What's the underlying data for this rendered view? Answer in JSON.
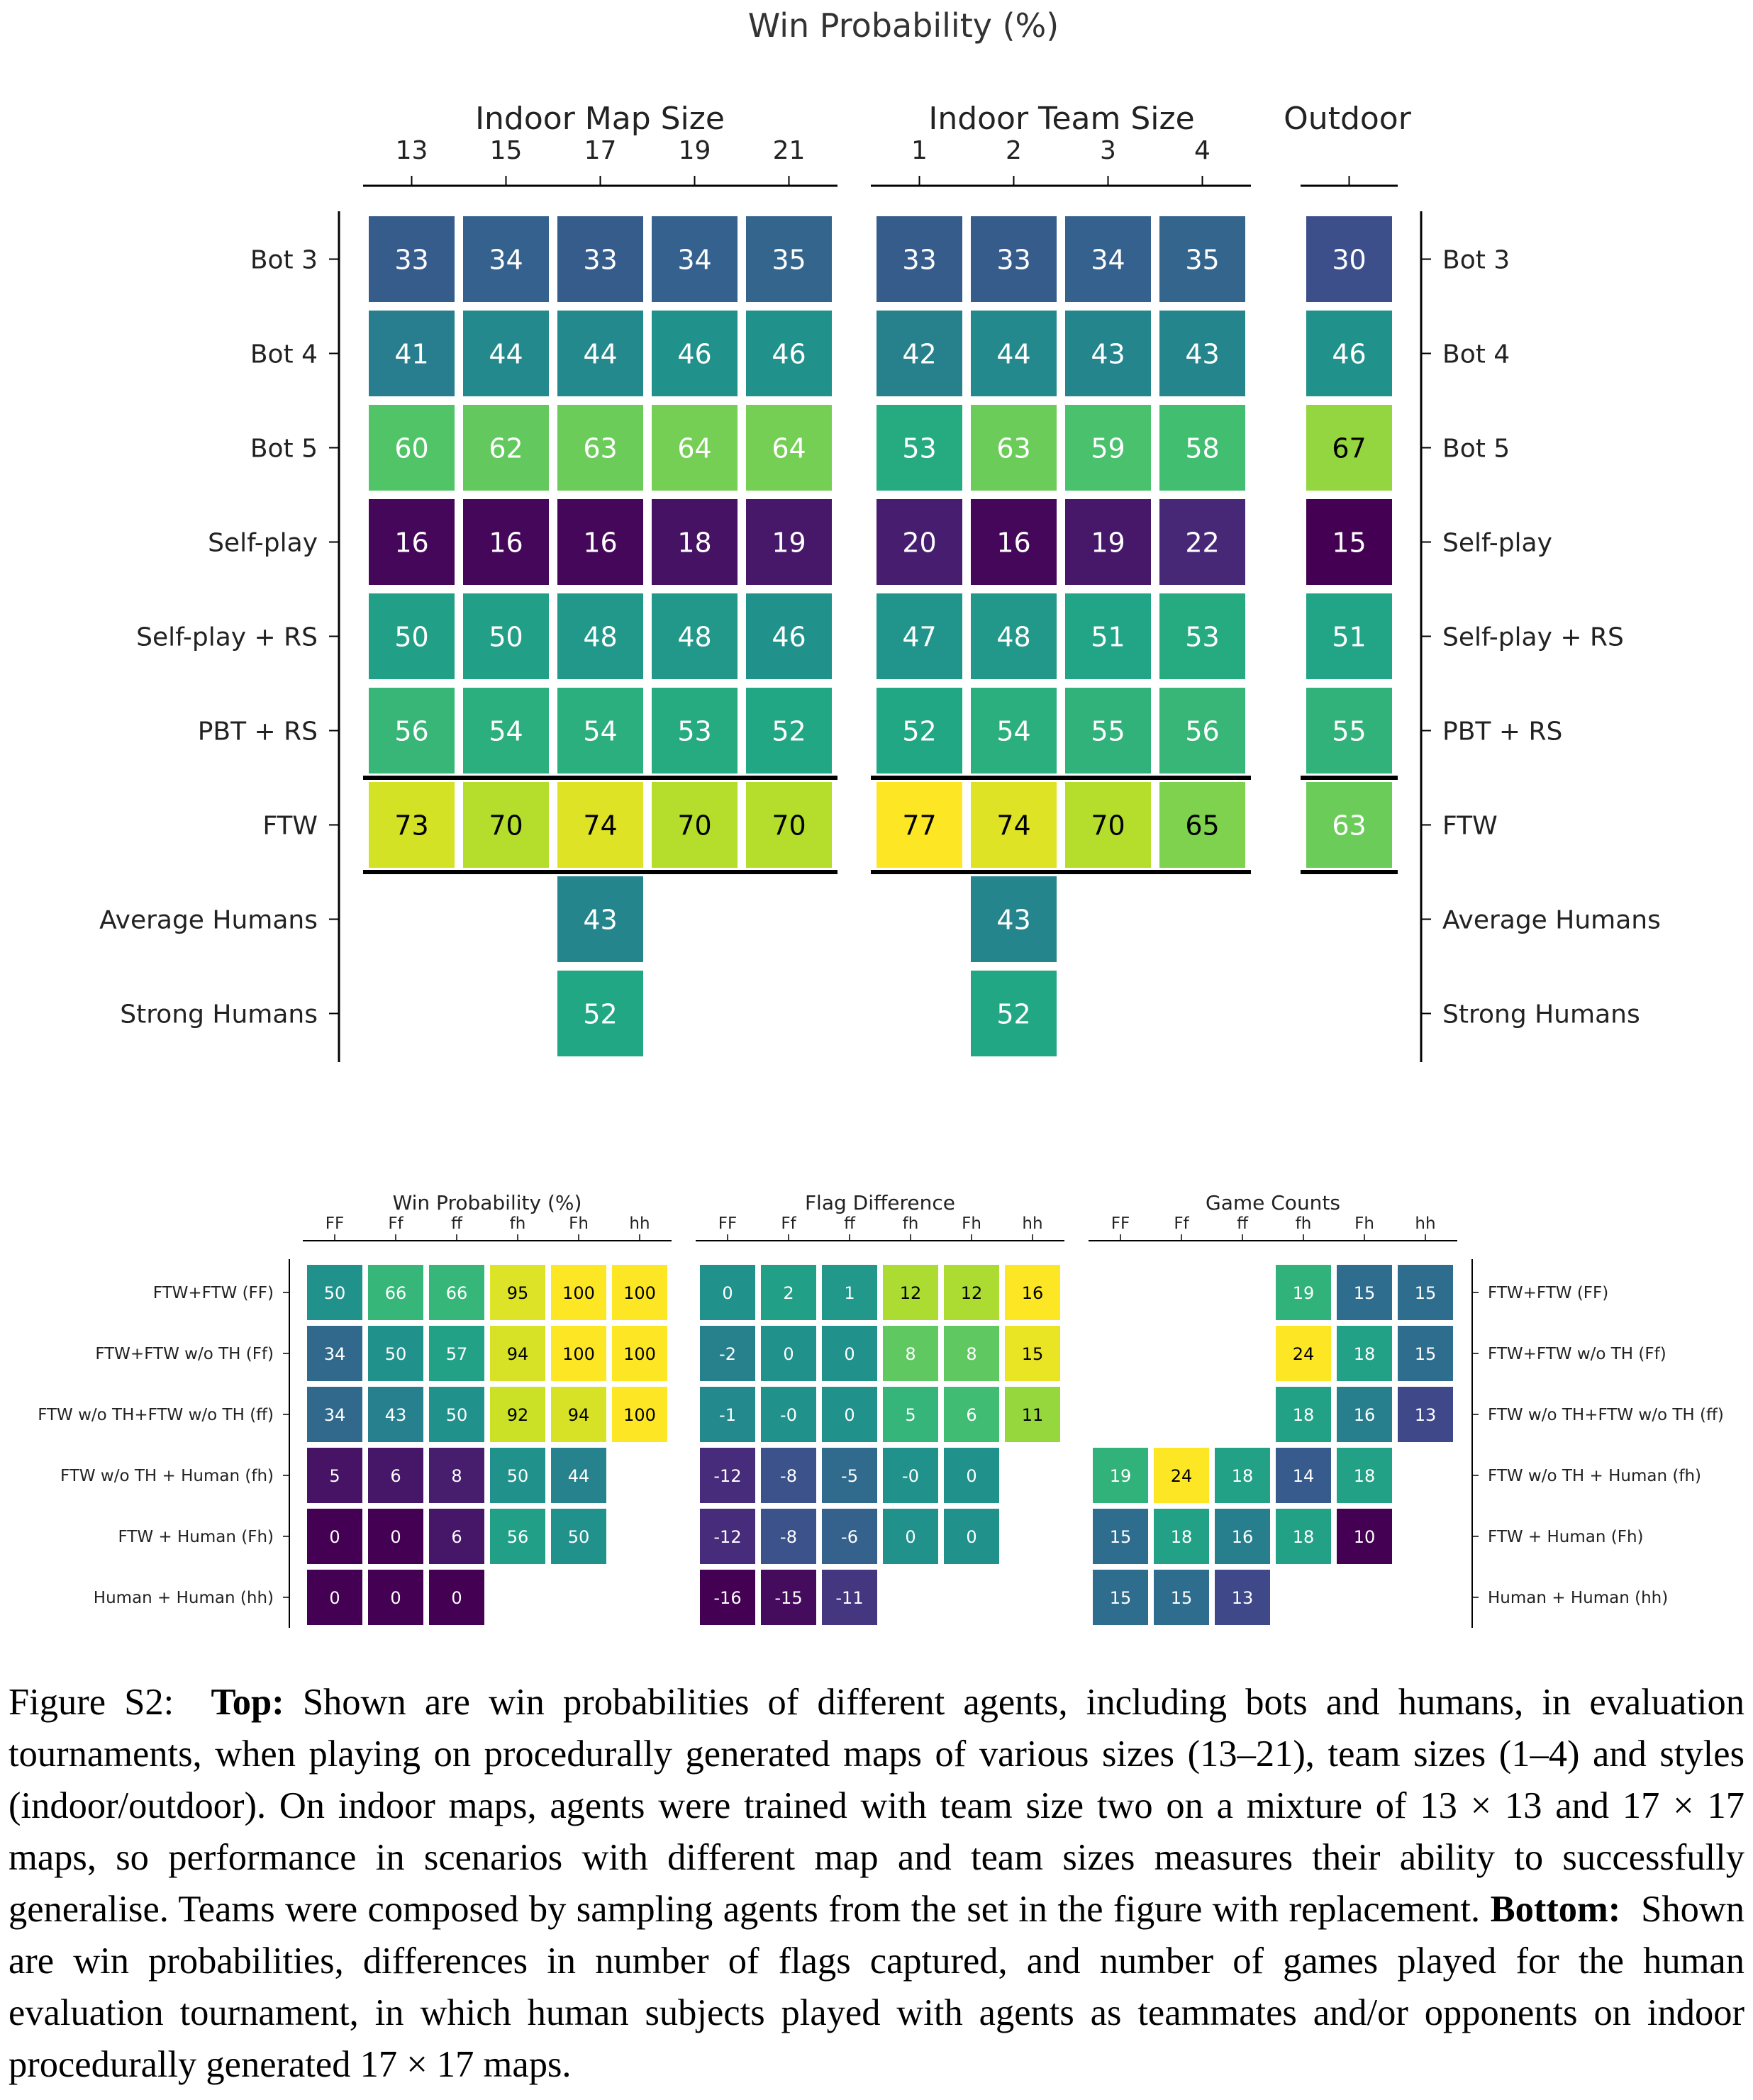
{
  "chart_data": [
    {
      "type": "heatmap",
      "title": "Win Probability (%)",
      "rows": [
        "Bot 3",
        "Bot 4",
        "Bot 5",
        "Self-play",
        "Self-play + RS",
        "PBT + RS",
        "FTW",
        "Average Humans",
        "Strong Humans"
      ],
      "panels": [
        {
          "label": "Indoor Map Size",
          "columns": [
            "13",
            "15",
            "17",
            "19",
            "21"
          ],
          "values": [
            [
              33,
              34,
              33,
              34,
              35
            ],
            [
              41,
              44,
              44,
              46,
              46
            ],
            [
              60,
              62,
              63,
              64,
              64
            ],
            [
              16,
              16,
              16,
              18,
              19
            ],
            [
              50,
              50,
              48,
              48,
              46
            ],
            [
              56,
              54,
              54,
              53,
              52
            ],
            [
              73,
              70,
              74,
              70,
              70
            ],
            [
              null,
              null,
              43,
              null,
              null
            ],
            [
              null,
              null,
              52,
              null,
              null
            ]
          ]
        },
        {
          "label": "Indoor Team Size",
          "columns": [
            "1",
            "2",
            "3",
            "4"
          ],
          "values": [
            [
              33,
              33,
              34,
              35
            ],
            [
              42,
              44,
              43,
              43
            ],
            [
              53,
              63,
              59,
              58
            ],
            [
              20,
              16,
              19,
              22
            ],
            [
              47,
              48,
              51,
              53
            ],
            [
              52,
              54,
              55,
              56
            ],
            [
              77,
              74,
              70,
              65
            ],
            [
              null,
              43,
              null,
              null
            ],
            [
              null,
              52,
              null,
              null
            ]
          ]
        },
        {
          "label": "Outdoor",
          "columns": [
            ""
          ],
          "values": [
            [
              30
            ],
            [
              46
            ],
            [
              67
            ],
            [
              15
            ],
            [
              51
            ],
            [
              55
            ],
            [
              63
            ],
            [
              null
            ],
            [
              null
            ]
          ]
        }
      ]
    },
    {
      "type": "heatmap",
      "rows": [
        "FTW+FTW (FF)",
        "FTW+FTW w/o TH (Ff)",
        "FTW w/o TH+FTW w/o TH (ff)",
        "FTW w/o TH + Human (fh)",
        "FTW + Human (Fh)",
        "Human + Human (hh)"
      ],
      "columns": [
        "FF",
        "Ff",
        "ff",
        "fh",
        "Fh",
        "hh"
      ],
      "panels": [
        {
          "label": "Win Probability (%)",
          "values": [
            [
              50,
              66,
              66,
              95,
              100,
              100
            ],
            [
              34,
              50,
              57,
              94,
              100,
              100
            ],
            [
              34,
              43,
              50,
              92,
              94,
              100
            ],
            [
              5,
              6,
              8,
              50,
              44,
              null
            ],
            [
              0,
              0,
              6,
              56,
              50,
              null
            ],
            [
              0,
              0,
              0,
              null,
              null,
              null
            ]
          ]
        },
        {
          "label": "Flag Difference",
          "values": [
            [
              "0",
              "2",
              "1",
              "12",
              "12",
              "16"
            ],
            [
              "-2",
              "0",
              "0",
              "8",
              "8",
              "15"
            ],
            [
              "-1",
              "-0",
              "0",
              "5",
              "6",
              "11"
            ],
            [
              "-12",
              "-8",
              "-5",
              "-0",
              "0",
              null
            ],
            [
              "-12",
              "-8",
              "-6",
              "0",
              "0",
              null
            ],
            [
              "-16",
              "-15",
              "-11",
              null,
              null,
              null
            ]
          ]
        },
        {
          "label": "Game Counts",
          "values": [
            [
              null,
              null,
              null,
              19,
              15,
              15
            ],
            [
              null,
              null,
              null,
              24,
              18,
              15
            ],
            [
              null,
              null,
              null,
              18,
              16,
              13
            ],
            [
              19,
              24,
              18,
              14,
              18,
              null
            ],
            [
              15,
              18,
              16,
              18,
              10,
              null
            ],
            [
              15,
              15,
              13,
              null,
              null,
              null
            ]
          ]
        }
      ]
    }
  ],
  "caption": {
    "label": "Figure S2:",
    "top_label": "Top:",
    "top_text": "Shown are win probabilities of different agents, including bots and humans, in evaluation tournaments, when playing on procedurally generated maps of various sizes (13–21), team sizes (1–4) and styles (indoor/outdoor). On indoor maps, agents were trained with team size two on a mixture of 13 × 13 and 17 × 17 maps, so performance in scenarios with different map and team sizes measures their ability to successfully generalise. Teams were composed by sampling agents from the set in the figure with replacement.",
    "bottom_label": "Bottom:",
    "bottom_text": "Shown are win probabilities, differences in number of flags captured, and number of games played for the human evaluation tournament, in which human subjects played with agents as teammates and/or opponents on indoor procedurally generated 17 × 17 maps."
  }
}
